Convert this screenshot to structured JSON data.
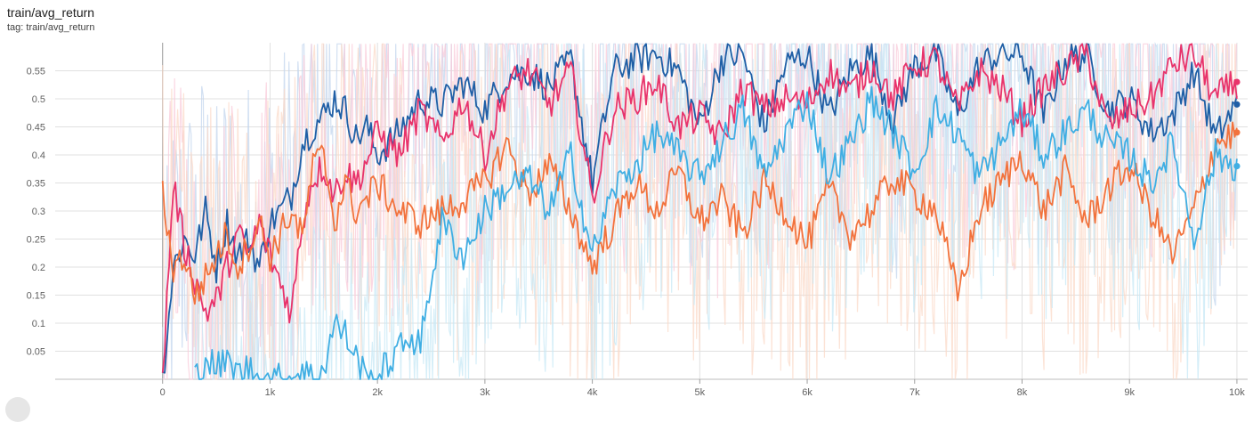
{
  "header": {
    "title": "train/avg_return",
    "tag": "tag: train/avg_return"
  },
  "chart_data": {
    "type": "line",
    "title": "train/avg_return",
    "xlabel": "",
    "ylabel": "",
    "xlim": [
      -1000,
      10100
    ],
    "ylim": [
      0,
      0.6
    ],
    "x_ticks": [
      0,
      1000,
      2000,
      3000,
      4000,
      5000,
      6000,
      7000,
      8000,
      9000,
      10000
    ],
    "x_tick_labels": [
      "0",
      "1k",
      "2k",
      "3k",
      "4k",
      "5k",
      "6k",
      "7k",
      "8k",
      "9k",
      "10k"
    ],
    "y_ticks": [
      0.05,
      0.1,
      0.15,
      0.2,
      0.25,
      0.3,
      0.35,
      0.4,
      0.45,
      0.5,
      0.55
    ],
    "y_tick_labels": [
      "0.05",
      "0.1",
      "0.15",
      "0.2",
      "0.25",
      "0.3",
      "0.35",
      "0.4",
      "0.45",
      "0.5",
      "0.55"
    ],
    "grid": true,
    "legend": "none",
    "series": [
      {
        "color": "#1f5fa6",
        "raw_color": "#c3d6ee",
        "x": [
          0,
          100,
          200,
          300,
          400,
          500,
          600,
          700,
          800,
          900,
          1000,
          1100,
          1200,
          1300,
          1400,
          1500,
          1600,
          1700,
          1800,
          1900,
          2000,
          2200,
          2400,
          2600,
          2800,
          3000,
          3200,
          3400,
          3600,
          3800,
          4000,
          4200,
          4400,
          4600,
          4800,
          5000,
          5200,
          5400,
          5600,
          5800,
          6000,
          6200,
          6400,
          6600,
          6800,
          7000,
          7200,
          7400,
          7600,
          7800,
          8000,
          8200,
          8400,
          8600,
          8800,
          9000,
          9200,
          9400,
          9600,
          9800,
          10000
        ],
        "y": [
          0.0,
          0.2,
          0.25,
          0.22,
          0.3,
          0.2,
          0.28,
          0.22,
          0.25,
          0.2,
          0.28,
          0.3,
          0.33,
          0.42,
          0.45,
          0.47,
          0.5,
          0.48,
          0.43,
          0.45,
          0.4,
          0.44,
          0.5,
          0.49,
          0.53,
          0.48,
          0.54,
          0.55,
          0.52,
          0.57,
          0.35,
          0.55,
          0.57,
          0.58,
          0.55,
          0.45,
          0.57,
          0.58,
          0.45,
          0.56,
          0.58,
          0.47,
          0.55,
          0.58,
          0.46,
          0.56,
          0.58,
          0.47,
          0.56,
          0.58,
          0.58,
          0.47,
          0.57,
          0.58,
          0.48,
          0.5,
          0.44,
          0.47,
          0.55,
          0.43,
          0.49
        ]
      },
      {
        "color": "#e8336b",
        "raw_color": "#f9cbd9",
        "x": [
          0,
          100,
          200,
          300,
          400,
          500,
          600,
          700,
          800,
          900,
          1000,
          1100,
          1200,
          1300,
          1400,
          1500,
          1600,
          1700,
          1800,
          1900,
          2000,
          2200,
          2400,
          2600,
          2800,
          3000,
          3200,
          3400,
          3600,
          3800,
          4000,
          4200,
          4400,
          4600,
          4800,
          5000,
          5200,
          5400,
          5600,
          5800,
          6000,
          6200,
          6400,
          6600,
          6800,
          7000,
          7200,
          7400,
          7600,
          7800,
          8000,
          8200,
          8400,
          8600,
          8800,
          9000,
          9200,
          9400,
          9600,
          9800,
          10000
        ],
        "y": [
          0.0,
          0.35,
          0.24,
          0.18,
          0.12,
          0.14,
          0.2,
          0.26,
          0.22,
          0.28,
          0.22,
          0.17,
          0.12,
          0.28,
          0.36,
          0.38,
          0.33,
          0.37,
          0.35,
          0.39,
          0.44,
          0.4,
          0.48,
          0.42,
          0.5,
          0.4,
          0.52,
          0.55,
          0.49,
          0.55,
          0.32,
          0.48,
          0.5,
          0.53,
          0.45,
          0.47,
          0.43,
          0.52,
          0.48,
          0.5,
          0.49,
          0.55,
          0.51,
          0.56,
          0.5,
          0.56,
          0.57,
          0.48,
          0.55,
          0.52,
          0.46,
          0.52,
          0.55,
          0.58,
          0.45,
          0.48,
          0.5,
          0.56,
          0.58,
          0.5,
          0.53
        ]
      },
      {
        "color": "#f2723c",
        "raw_color": "#fbd9c8",
        "x": [
          0,
          100,
          200,
          300,
          400,
          500,
          600,
          700,
          800,
          900,
          1000,
          1100,
          1200,
          1300,
          1400,
          1500,
          1600,
          1700,
          1800,
          1900,
          2000,
          2200,
          2400,
          2600,
          2800,
          3000,
          3200,
          3400,
          3600,
          3800,
          4000,
          4200,
          4400,
          4600,
          4800,
          5000,
          5200,
          5400,
          5600,
          5800,
          6000,
          6200,
          6400,
          6600,
          6800,
          7000,
          7200,
          7400,
          7600,
          7800,
          8000,
          8200,
          8400,
          8600,
          8800,
          9000,
          9200,
          9400,
          9600,
          9800,
          10000
        ],
        "y": [
          0.33,
          0.2,
          0.22,
          0.15,
          0.18,
          0.22,
          0.26,
          0.2,
          0.24,
          0.28,
          0.22,
          0.26,
          0.3,
          0.25,
          0.38,
          0.4,
          0.28,
          0.35,
          0.3,
          0.32,
          0.35,
          0.3,
          0.28,
          0.3,
          0.32,
          0.35,
          0.42,
          0.33,
          0.38,
          0.3,
          0.2,
          0.28,
          0.35,
          0.3,
          0.37,
          0.28,
          0.32,
          0.26,
          0.35,
          0.3,
          0.24,
          0.34,
          0.26,
          0.3,
          0.36,
          0.33,
          0.3,
          0.15,
          0.3,
          0.35,
          0.4,
          0.3,
          0.37,
          0.28,
          0.34,
          0.38,
          0.3,
          0.22,
          0.3,
          0.42,
          0.44
        ]
      },
      {
        "color": "#3faee3",
        "raw_color": "#c7e8f6",
        "x": [
          300,
          400,
          500,
          600,
          700,
          800,
          900,
          1000,
          1100,
          1200,
          1300,
          1400,
          1500,
          1600,
          1700,
          1800,
          1900,
          2000,
          2100,
          2200,
          2300,
          2400,
          2500,
          2600,
          2800,
          3000,
          3200,
          3400,
          3600,
          3800,
          4000,
          4200,
          4400,
          4600,
          4800,
          5000,
          5200,
          5400,
          5600,
          5800,
          6000,
          6200,
          6400,
          6600,
          6800,
          7000,
          7200,
          7400,
          7600,
          7800,
          8000,
          8200,
          8400,
          8600,
          8800,
          9000,
          9200,
          9400,
          9600,
          9800,
          10000
        ],
        "y": [
          0.0,
          0.04,
          0.02,
          0.03,
          0.01,
          0.02,
          0.0,
          0.0,
          0.0,
          0.0,
          0.02,
          0.0,
          0.02,
          0.1,
          0.08,
          0.04,
          0.0,
          0.0,
          0.03,
          0.05,
          0.08,
          0.06,
          0.18,
          0.28,
          0.22,
          0.3,
          0.34,
          0.36,
          0.3,
          0.4,
          0.22,
          0.34,
          0.38,
          0.44,
          0.4,
          0.36,
          0.42,
          0.48,
          0.36,
          0.44,
          0.5,
          0.36,
          0.42,
          0.5,
          0.44,
          0.37,
          0.48,
          0.44,
          0.36,
          0.42,
          0.48,
          0.4,
          0.44,
          0.48,
          0.42,
          0.4,
          0.35,
          0.42,
          0.25,
          0.4,
          0.38
        ]
      }
    ]
  }
}
